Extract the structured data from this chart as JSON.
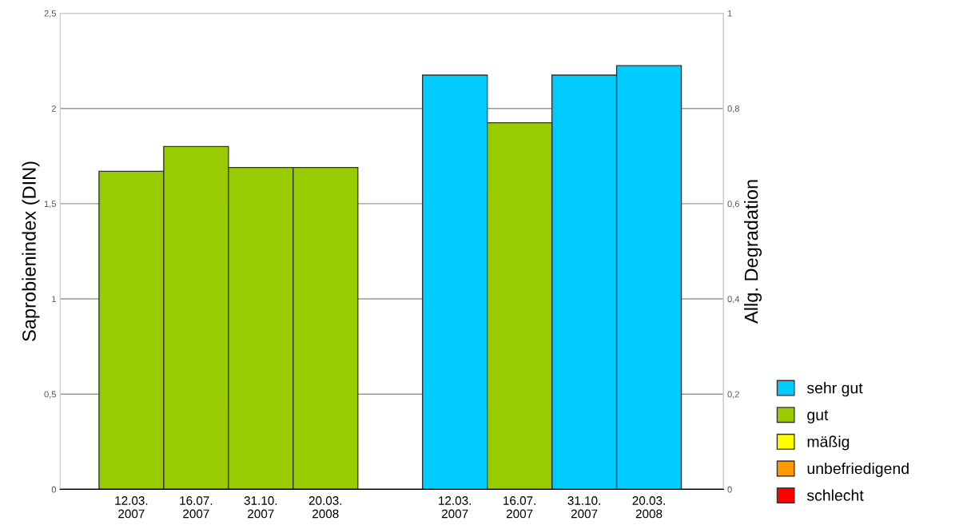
{
  "chart_data": {
    "type": "bar",
    "categories": [
      "12.03.\n2007",
      "16.07.\n2007",
      "31.10.\n2007",
      "20.03.\n2008",
      null,
      "12.03.\n2007",
      "16.07.\n2007",
      "31.10.\n2007",
      "20.03.\n2008"
    ],
    "ylabel": "Saprobienindex (DIN)",
    "y2label": "Allg. Degradation",
    "ylim": [
      0,
      2.5
    ],
    "yticks": [
      0,
      {
        "value": 0.5,
        "label": "0,5"
      },
      1,
      {
        "value": 1.5,
        "label": "1,5"
      },
      2,
      {
        "value": 2.5,
        "label": "2,5"
      }
    ],
    "y2lim": [
      0,
      1
    ],
    "y2ticks": [
      0,
      {
        "value": 0.2,
        "label": "0,2"
      },
      {
        "value": 0.4,
        "label": "0,4"
      },
      {
        "value": 0.6,
        "label": "0,6"
      },
      {
        "value": 0.8,
        "label": "0,8"
      },
      1
    ],
    "grid": "y",
    "legend": "bottom right",
    "series": [
      {
        "name": "sehr gut",
        "color": "#00ccff",
        "axis": "y2",
        "values": [
          null,
          null,
          null,
          null,
          null,
          0.87,
          null,
          0.87,
          0.89
        ]
      },
      {
        "name": "gut",
        "color": "#99cc00",
        "axis": "y",
        "values": [
          1.67,
          1.8,
          1.69,
          1.69,
          null,
          null,
          null,
          null,
          null
        ]
      },
      {
        "color": "#99cc00",
        "axis": "y2",
        "values": [
          null,
          null,
          null,
          null,
          null,
          null,
          0.77,
          null,
          null
        ]
      },
      {
        "name": "mäßig",
        "color": "#ffff00",
        "axis": "y",
        "values": [
          null,
          null,
          null,
          null,
          null,
          null,
          null,
          null,
          null
        ]
      },
      {
        "name": "unbefriedigend",
        "color": "#ff9900",
        "axis": "y",
        "values": [
          null,
          null,
          null,
          null,
          null,
          null,
          null,
          null,
          null
        ]
      },
      {
        "name": "schlecht",
        "color": "#ff0000",
        "axis": "y",
        "values": [
          null,
          null,
          null,
          null,
          null,
          null,
          null,
          null,
          null
        ]
      }
    ]
  }
}
